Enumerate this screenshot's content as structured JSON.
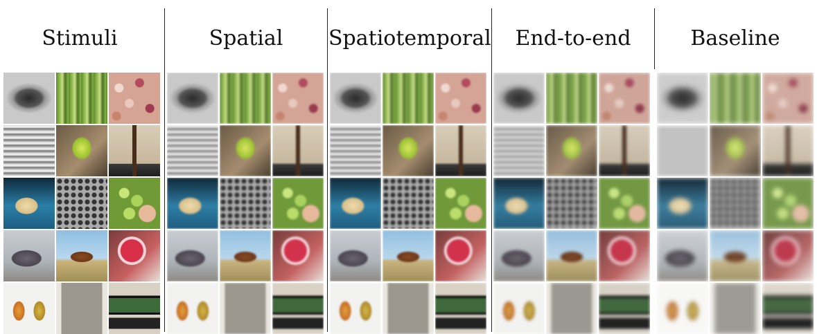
{
  "columns": [
    {
      "key": "stimuli",
      "label": "Stimuli",
      "blur": ""
    },
    {
      "key": "spatial",
      "label": "Spatial",
      "blur": "blur"
    },
    {
      "key": "spatiotemporal",
      "label": "Spatiotemporal",
      "blur": "blur"
    },
    {
      "key": "end_to_end",
      "label": "End-to-end",
      "blur": "blurmore"
    },
    {
      "key": "baseline",
      "label": "Baseline",
      "blur": "blurmax"
    }
  ],
  "tiles": [
    {
      "name": "bowl-image",
      "bg": "radial-gradient(ellipse 45% 30% at 50% 50%, #2a2a2a 0%, #555 55%, #9a9a9a 70%, #c9c9c9 100%)"
    },
    {
      "name": "bamboo-image",
      "bg": "repeating-linear-gradient(90deg, #5f8a2c 0px, #9cc45a 6px, #c9e08a 9px, #4e7424 13px, #88b84a 18px)"
    },
    {
      "name": "beans-image",
      "bg": "radial-gradient(circle at 20% 30%, #f1d9d0 0 6px, transparent 7px), radial-gradient(circle at 60% 20%, #b54a5e 0 6px, transparent 7px), radial-gradient(circle at 40% 60%, #e9c9be 0 6px, transparent 7px), radial-gradient(circle at 80% 70%, #9e3a4e 0 6px, transparent 7px), radial-gradient(circle at 15% 85%, #c9856c 0 6px, transparent 7px), #d6a495"
    },
    {
      "name": "blinds-image",
      "bg": "repeating-linear-gradient(180deg, #d9d9d9 0px, #f2f2f2 3px, #7a7a7a 5px, #bdbdbd 8px)"
    },
    {
      "name": "butterfly-image",
      "bg": "radial-gradient(ellipse 28% 32% at 50% 45%, #d8e85a 0%, #9ac12f 60%, transparent 70%), linear-gradient(135deg, #6b5a44, #a68d6d 60%, #4a3d2e)"
    },
    {
      "name": "coat-rack-image",
      "bg": "linear-gradient(90deg, transparent 46%, #4a2e1c 46% 54%, transparent 54%), linear-gradient(180deg, #d9cdb8 0%, #c7b79d 75%, #3a3a3a 76%, #1e1e1e 100%)"
    },
    {
      "name": "dough-box-image",
      "bg": "radial-gradient(ellipse 30% 22% at 45% 55%, #efdcaa 0%, #d8be86 70%, transparent 75%), linear-gradient(180deg, #0f2a3a 0%, #2a7fa8 55%, #1d5d80 100%)"
    },
    {
      "name": "drain-grate-image",
      "bg": "radial-gradient(circle at 50% 50%, #333 0 3px, #aaa 4px 6px) 0 0/10px 10px, #7f7f7f"
    },
    {
      "name": "grapes-image",
      "bg": "radial-gradient(circle at 30% 30%, #c8e67a 0 7px, transparent 8px), radial-gradient(circle at 55% 45%, #a9d35a 0 8px, transparent 9px), radial-gradient(circle at 40% 70%, #b8dd66 0 8px, transparent 9px), radial-gradient(circle at 75% 70%, #e8b89a 0 12px, transparent 13px), #6f9a36"
    },
    {
      "name": "hippo-image",
      "bg": "radial-gradient(ellipse 40% 22% at 45% 55%, #6a6470 0%, #4b4650 70%, transparent 75%), linear-gradient(180deg, #c9cdd2 0%, #aeb4ba 60%, #8d8a84 100%)"
    },
    {
      "name": "horse-image",
      "bg": "radial-gradient(ellipse 30% 14% at 50% 52%, #8a4a22 0%, #6e3818 70%, transparent 75%), linear-gradient(180deg, #8fbfe3 0%, #b8d7ee 55%, #c9b37a 60%, #a18f58 100%)"
    },
    {
      "name": "jam-jar-image",
      "bg": "radial-gradient(circle at 45% 40%, #d9304a 0 16px, #f0d5d8 17px 20px, transparent 21px), linear-gradient(135deg, #7a3b3b, #c76060 60%, #e7e2da)"
    },
    {
      "name": "mangoes-image",
      "bg": "radial-gradient(ellipse 18% 30% at 30% 55%, #e8a036 0%, #c86e24 60%, transparent 65%), radial-gradient(ellipse 18% 30% at 70% 55%, #d8b640 0%, #b08a2a 60%, transparent 65%), #f2f2f0"
    },
    {
      "name": "tshirt-image",
      "bg": "linear-gradient(90deg, #e9e6df 0 10%, #9c9890 10% 90%, #e9e6df 90%)"
    },
    {
      "name": "tv-stand-image",
      "bg": "linear-gradient(180deg, transparent 25%, #111 25% 30%, #3d6a3a 30% 58%, #111 58% 62%, transparent 62%), linear-gradient(180deg, #d9d2c4 0 68%, #222 68% 90%, #d9d2c4 90%)"
    }
  ]
}
